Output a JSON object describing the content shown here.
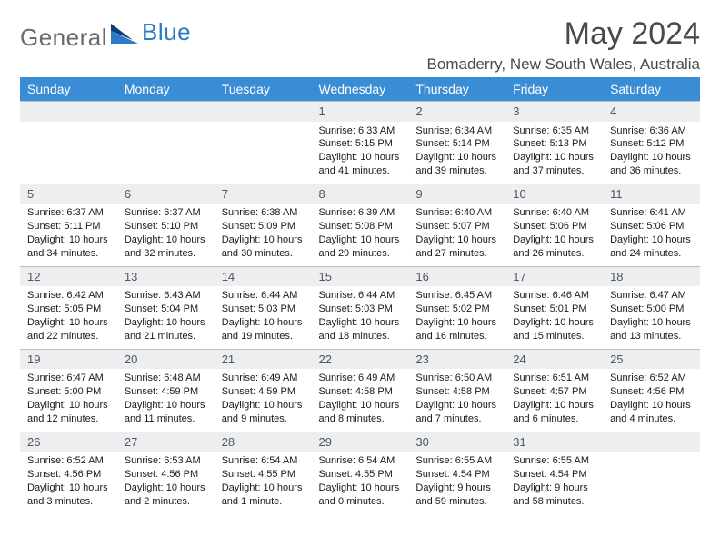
{
  "brand": {
    "part1": "General",
    "part2": "Blue"
  },
  "colors": {
    "header_bg": "#3a8cd4",
    "daynum_bg": "#eceef0",
    "border": "#b8beca",
    "text": "#1a1a1a",
    "muted": "#505560",
    "logo_gray": "#6b6b6b",
    "logo_blue": "#2a7cc4"
  },
  "title": "May 2024",
  "location": "Bomaderry, New South Wales, Australia",
  "weekdays": [
    "Sunday",
    "Monday",
    "Tuesday",
    "Wednesday",
    "Thursday",
    "Friday",
    "Saturday"
  ],
  "weeks": [
    [
      null,
      null,
      null,
      {
        "n": "1",
        "sr": "6:33 AM",
        "ss": "5:15 PM",
        "dl": "Daylight: 10 hours and 41 minutes."
      },
      {
        "n": "2",
        "sr": "6:34 AM",
        "ss": "5:14 PM",
        "dl": "Daylight: 10 hours and 39 minutes."
      },
      {
        "n": "3",
        "sr": "6:35 AM",
        "ss": "5:13 PM",
        "dl": "Daylight: 10 hours and 37 minutes."
      },
      {
        "n": "4",
        "sr": "6:36 AM",
        "ss": "5:12 PM",
        "dl": "Daylight: 10 hours and 36 minutes."
      }
    ],
    [
      {
        "n": "5",
        "sr": "6:37 AM",
        "ss": "5:11 PM",
        "dl": "Daylight: 10 hours and 34 minutes."
      },
      {
        "n": "6",
        "sr": "6:37 AM",
        "ss": "5:10 PM",
        "dl": "Daylight: 10 hours and 32 minutes."
      },
      {
        "n": "7",
        "sr": "6:38 AM",
        "ss": "5:09 PM",
        "dl": "Daylight: 10 hours and 30 minutes."
      },
      {
        "n": "8",
        "sr": "6:39 AM",
        "ss": "5:08 PM",
        "dl": "Daylight: 10 hours and 29 minutes."
      },
      {
        "n": "9",
        "sr": "6:40 AM",
        "ss": "5:07 PM",
        "dl": "Daylight: 10 hours and 27 minutes."
      },
      {
        "n": "10",
        "sr": "6:40 AM",
        "ss": "5:06 PM",
        "dl": "Daylight: 10 hours and 26 minutes."
      },
      {
        "n": "11",
        "sr": "6:41 AM",
        "ss": "5:06 PM",
        "dl": "Daylight: 10 hours and 24 minutes."
      }
    ],
    [
      {
        "n": "12",
        "sr": "6:42 AM",
        "ss": "5:05 PM",
        "dl": "Daylight: 10 hours and 22 minutes."
      },
      {
        "n": "13",
        "sr": "6:43 AM",
        "ss": "5:04 PM",
        "dl": "Daylight: 10 hours and 21 minutes."
      },
      {
        "n": "14",
        "sr": "6:44 AM",
        "ss": "5:03 PM",
        "dl": "Daylight: 10 hours and 19 minutes."
      },
      {
        "n": "15",
        "sr": "6:44 AM",
        "ss": "5:03 PM",
        "dl": "Daylight: 10 hours and 18 minutes."
      },
      {
        "n": "16",
        "sr": "6:45 AM",
        "ss": "5:02 PM",
        "dl": "Daylight: 10 hours and 16 minutes."
      },
      {
        "n": "17",
        "sr": "6:46 AM",
        "ss": "5:01 PM",
        "dl": "Daylight: 10 hours and 15 minutes."
      },
      {
        "n": "18",
        "sr": "6:47 AM",
        "ss": "5:00 PM",
        "dl": "Daylight: 10 hours and 13 minutes."
      }
    ],
    [
      {
        "n": "19",
        "sr": "6:47 AM",
        "ss": "5:00 PM",
        "dl": "Daylight: 10 hours and 12 minutes."
      },
      {
        "n": "20",
        "sr": "6:48 AM",
        "ss": "4:59 PM",
        "dl": "Daylight: 10 hours and 11 minutes."
      },
      {
        "n": "21",
        "sr": "6:49 AM",
        "ss": "4:59 PM",
        "dl": "Daylight: 10 hours and 9 minutes."
      },
      {
        "n": "22",
        "sr": "6:49 AM",
        "ss": "4:58 PM",
        "dl": "Daylight: 10 hours and 8 minutes."
      },
      {
        "n": "23",
        "sr": "6:50 AM",
        "ss": "4:58 PM",
        "dl": "Daylight: 10 hours and 7 minutes."
      },
      {
        "n": "24",
        "sr": "6:51 AM",
        "ss": "4:57 PM",
        "dl": "Daylight: 10 hours and 6 minutes."
      },
      {
        "n": "25",
        "sr": "6:52 AM",
        "ss": "4:56 PM",
        "dl": "Daylight: 10 hours and 4 minutes."
      }
    ],
    [
      {
        "n": "26",
        "sr": "6:52 AM",
        "ss": "4:56 PM",
        "dl": "Daylight: 10 hours and 3 minutes."
      },
      {
        "n": "27",
        "sr": "6:53 AM",
        "ss": "4:56 PM",
        "dl": "Daylight: 10 hours and 2 minutes."
      },
      {
        "n": "28",
        "sr": "6:54 AM",
        "ss": "4:55 PM",
        "dl": "Daylight: 10 hours and 1 minute."
      },
      {
        "n": "29",
        "sr": "6:54 AM",
        "ss": "4:55 PM",
        "dl": "Daylight: 10 hours and 0 minutes."
      },
      {
        "n": "30",
        "sr": "6:55 AM",
        "ss": "4:54 PM",
        "dl": "Daylight: 9 hours and 59 minutes."
      },
      {
        "n": "31",
        "sr": "6:55 AM",
        "ss": "4:54 PM",
        "dl": "Daylight: 9 hours and 58 minutes."
      },
      null
    ]
  ],
  "labels": {
    "sunrise": "Sunrise:",
    "sunset": "Sunset:"
  }
}
